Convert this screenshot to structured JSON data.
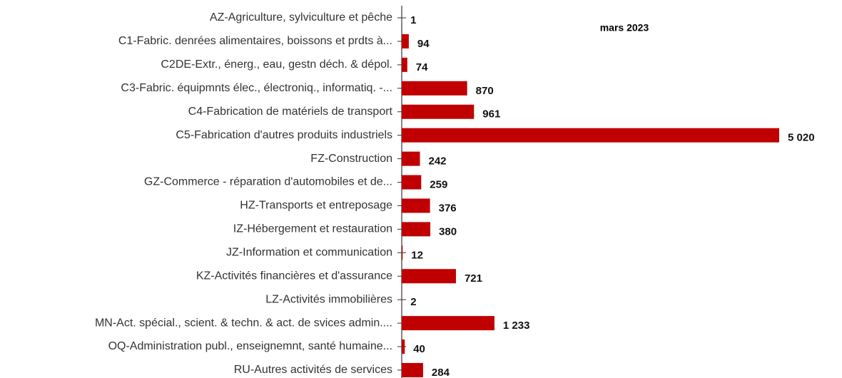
{
  "chart_data": {
    "type": "bar",
    "orientation": "horizontal",
    "categories": [
      "AZ-Agriculture, sylviculture et pêche",
      "C1-Fabric. denrées alimentaires, boissons et  prdts à...",
      "C2DE-Extr., énerg., eau, gestn déch. & dépol.",
      "C3-Fabric. équipmnts élec., électroniq., informatiq. -...",
      "C4-Fabrication de matériels de transport",
      "C5-Fabrication d'autres produits industriels",
      "FZ-Construction",
      "GZ-Commerce - réparation d'automobiles et de...",
      "HZ-Transports et entreposage",
      "IZ-Hébergement et restauration",
      "JZ-Information et communication",
      "KZ-Activités financières et d'assurance",
      "LZ-Activités immobilières",
      "MN-Act. spécial., scient. & techn. & act. de svices admin....",
      "OQ-Administration publ., enseignemnt, santé humaine...",
      "RU-Autres activités de services"
    ],
    "series": [
      {
        "name": "mars 2023",
        "color": "#c00000",
        "values": [
          1,
          94,
          74,
          870,
          961,
          5020,
          242,
          259,
          376,
          380,
          12,
          721,
          2,
          1233,
          40,
          284
        ],
        "value_labels": [
          "1",
          "94",
          "74",
          "870",
          "961",
          "5 020",
          "242",
          "259",
          "376",
          "380",
          "12",
          "721",
          "2",
          "1 233",
          "40",
          "284"
        ]
      }
    ]
  }
}
